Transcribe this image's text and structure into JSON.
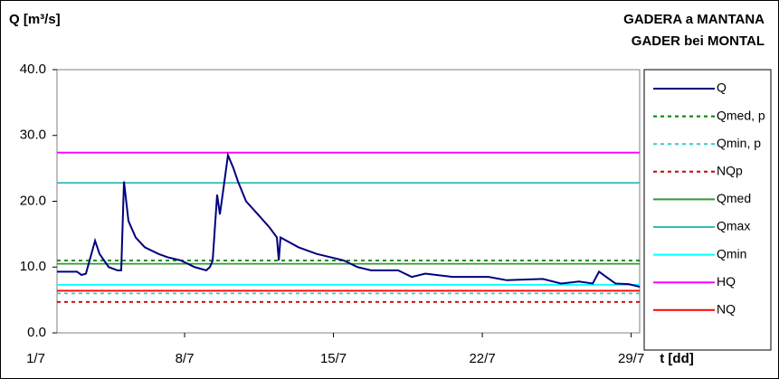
{
  "chart_data": {
    "type": "line",
    "title_left": "Q [m³/s]",
    "title_right": [
      "GADERA a MANTANA",
      "GADER bei MONTAL"
    ],
    "x_label": "t [dd]",
    "xlim": [
      2,
      29.4
    ],
    "xticks": [
      {
        "value": 1,
        "label": "1/7"
      },
      {
        "value": 8,
        "label": "8/7"
      },
      {
        "value": 15,
        "label": "15/7"
      },
      {
        "value": 22,
        "label": "22/7"
      },
      {
        "value": 29,
        "label": "29/7"
      }
    ],
    "ylim": [
      0,
      40
    ],
    "yticks": [
      {
        "value": 0,
        "label": "0.0"
      },
      {
        "value": 10,
        "label": "10.0"
      },
      {
        "value": 20,
        "label": "20.0"
      },
      {
        "value": 30,
        "label": "30.0"
      },
      {
        "value": 40,
        "label": "40.0"
      }
    ],
    "series": [
      {
        "name": "Q",
        "color": "#000080",
        "x": [
          2.0,
          2.94,
          3.15,
          3.36,
          3.79,
          4.0,
          4.43,
          4.85,
          5.02,
          5.15,
          5.36,
          5.7,
          6.13,
          6.77,
          7.19,
          7.83,
          8.47,
          9.02,
          9.19,
          9.32,
          9.53,
          9.66,
          9.83,
          10.04,
          10.3,
          10.51,
          10.89,
          11.45,
          12.0,
          12.34,
          12.43,
          12.51,
          13.36,
          14.21,
          14.85,
          15.49,
          16.13,
          16.77,
          18.04,
          18.68,
          19.32,
          20.6,
          22.3,
          23.15,
          24.85,
          25.7,
          26.55,
          27.19,
          27.49,
          27.83,
          28.26,
          28.89,
          29.4
        ],
        "values": [
          9.3,
          9.3,
          8.8,
          9.0,
          14.0,
          12.0,
          10.0,
          9.5,
          9.5,
          23.0,
          17.0,
          14.5,
          13.0,
          12.0,
          11.5,
          11.0,
          10.0,
          9.5,
          10.0,
          11.0,
          21.0,
          18.0,
          22.0,
          27.0,
          25.0,
          23.0,
          20.0,
          18.0,
          16.0,
          14.5,
          11.0,
          14.5,
          13.0,
          12.0,
          11.5,
          11.0,
          10.0,
          9.5,
          9.5,
          8.5,
          9.0,
          8.5,
          8.5,
          8.0,
          8.2,
          7.5,
          7.8,
          7.5,
          9.3,
          8.5,
          7.5,
          7.4,
          7.0
        ]
      }
    ],
    "reference_lines": [
      {
        "name": "Qmed, p",
        "color": "#008000",
        "dashed": true,
        "value": 11.0
      },
      {
        "name": "Qmin, p",
        "color": "#33cccc",
        "dashed": true,
        "value": 6.0
      },
      {
        "name": "NQp",
        "color": "#cc0000",
        "dashed": true,
        "value": 4.7
      },
      {
        "name": "Qmed",
        "color": "#339933",
        "dashed": false,
        "value": 10.5
      },
      {
        "name": "Qmax",
        "color": "#33bbbb",
        "dashed": false,
        "value": 22.8
      },
      {
        "name": "Qmin",
        "color": "#00ffff",
        "dashed": false,
        "value": 7.3
      },
      {
        "name": "HQ",
        "color": "#ff00ff",
        "dashed": false,
        "value": 27.4
      },
      {
        "name": "NQ",
        "color": "#ff0000",
        "dashed": false,
        "value": 6.4
      }
    ]
  }
}
